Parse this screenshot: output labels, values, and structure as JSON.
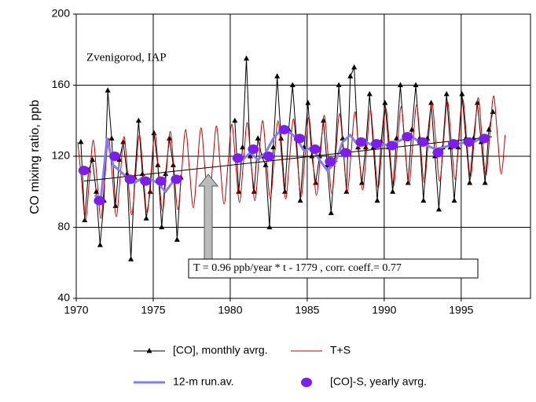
{
  "chart_data": {
    "type": "line",
    "annotation_location": "Zvenigorod, IAP",
    "ylabel": "CO mixing ratio, ppb",
    "annotation_trend": "T = 0.96 ppb/year * t  - 1779 , corr. coeff.= 0.77",
    "xlim": [
      1970,
      1999.5
    ],
    "ylim": [
      40,
      200
    ],
    "xticks": [
      1970,
      1975,
      1980,
      1985,
      1990,
      1995
    ],
    "yticks": [
      40,
      80,
      120,
      160,
      200
    ],
    "grid": true,
    "trend": {
      "color": "#000000",
      "x": [
        1970.5,
        1997
      ],
      "values": [
        106,
        131
      ]
    },
    "series": [
      {
        "name": "[CO], monthly avrg.",
        "color": "#000000",
        "marker": "triangle",
        "line": true,
        "width": 1,
        "x": [
          1970.3,
          1970.55,
          1970.8,
          1971.05,
          1971.3,
          1971.55,
          1971.8,
          1972.05,
          1972.3,
          1972.55,
          1972.8,
          1973.05,
          1973.3,
          1973.55,
          1973.8,
          1974.05,
          1974.3,
          1974.55,
          1974.8,
          1975.05,
          1975.3,
          1975.55,
          1975.8,
          1976.05,
          1976.3,
          1976.55,
          1976.8,
          1978.5,
          1980.3,
          1980.55,
          1980.8,
          1981.05,
          1981.3,
          1981.55,
          1981.8,
          1982.05,
          1982.3,
          1982.55,
          1982.8,
          1983.05,
          1983.3,
          1983.55,
          1983.8,
          1984.05,
          1984.3,
          1984.55,
          1984.8,
          1985.05,
          1985.3,
          1985.55,
          1985.8,
          1986.05,
          1986.3,
          1986.55,
          1986.8,
          1987.05,
          1987.3,
          1987.55,
          1987.8,
          1988.05,
          1988.3,
          1988.55,
          1988.8,
          1989.05,
          1989.3,
          1989.55,
          1989.8,
          1990.05,
          1990.3,
          1990.55,
          1990.8,
          1991.05,
          1991.3,
          1991.55,
          1991.8,
          1992.05,
          1992.3,
          1992.55,
          1992.8,
          1993.05,
          1993.3,
          1993.55,
          1993.8,
          1994.05,
          1994.3,
          1994.55,
          1994.8,
          1995.05,
          1995.3,
          1995.55,
          1995.8,
          1996.05,
          1996.3,
          1996.55,
          1996.8,
          1997.05
        ],
        "values": [
          128,
          84,
          112,
          118,
          100,
          70,
          95,
          157,
          130,
          92,
          118,
          128,
          110,
          62,
          108,
          140,
          110,
          85,
          100,
          133,
          115,
          80,
          110,
          130,
          115,
          73,
          108,
          null,
          140,
          100,
          125,
          175,
          120,
          100,
          130,
          120,
          115,
          80,
          125,
          165,
          130,
          100,
          135,
          160,
          130,
          95,
          125,
          150,
          120,
          105,
          120,
          140,
          115,
          88,
          118,
          160,
          130,
          100,
          165,
          170,
          125,
          105,
          125,
          155,
          125,
          95,
          128,
          150,
          125,
          100,
          130,
          160,
          130,
          105,
          135,
          160,
          130,
          95,
          130,
          150,
          120,
          90,
          125,
          155,
          125,
          95,
          125,
          155,
          130,
          105,
          130,
          150,
          128,
          105,
          135,
          145
        ]
      },
      {
        "name": "T+S",
        "color": "#c00000",
        "marker": null,
        "line": true,
        "width": 1,
        "smooth": true,
        "x": [
          1970.1,
          1970.35,
          1970.6,
          1970.85,
          1971.1,
          1971.35,
          1971.6,
          1971.85,
          1972.1,
          1972.35,
          1972.6,
          1972.85,
          1973.1,
          1973.35,
          1973.6,
          1973.85,
          1974.1,
          1974.35,
          1974.6,
          1974.85,
          1975.1,
          1975.35,
          1975.6,
          1975.85,
          1976.1,
          1976.35,
          1976.6,
          1976.85,
          1977.1,
          1977.35,
          1977.6,
          1977.85,
          1978.1,
          1978.35,
          1978.6,
          1978.85,
          1979.1,
          1979.35,
          1979.6,
          1979.85,
          1980.1,
          1980.35,
          1980.6,
          1980.85,
          1981.1,
          1981.35,
          1981.6,
          1981.85,
          1982.1,
          1982.35,
          1982.6,
          1982.85,
          1983.1,
          1983.35,
          1983.6,
          1983.85,
          1984.1,
          1984.35,
          1984.6,
          1984.85,
          1985.1,
          1985.35,
          1985.6,
          1985.85,
          1986.1,
          1986.35,
          1986.6,
          1986.85,
          1987.1,
          1987.35,
          1987.6,
          1987.85,
          1988.1,
          1988.35,
          1988.6,
          1988.85,
          1989.1,
          1989.35,
          1989.6,
          1989.85,
          1990.1,
          1990.35,
          1990.6,
          1990.85,
          1991.1,
          1991.35,
          1991.6,
          1991.85,
          1992.1,
          1992.35,
          1992.6,
          1992.85,
          1993.1,
          1993.35,
          1993.6,
          1993.85,
          1994.1,
          1994.35,
          1994.6,
          1994.85,
          1995.1,
          1995.35,
          1995.6,
          1995.85,
          1996.1,
          1996.35,
          1996.6,
          1996.85,
          1997.1,
          1997.35,
          1997.6,
          1997.85
        ],
        "values": [
          128,
          106,
          84,
          106,
          129,
          107,
          85,
          107,
          130,
          108,
          86,
          108,
          131,
          109,
          87,
          109,
          132,
          110,
          88,
          110,
          133,
          111,
          89,
          111,
          134,
          112,
          90,
          112,
          135,
          113,
          91,
          113,
          136,
          114,
          92,
          114,
          137,
          115,
          93,
          115,
          138,
          116,
          94,
          116,
          139,
          117,
          95,
          117,
          140,
          118,
          96,
          118,
          140,
          118,
          96,
          118,
          141,
          119,
          97,
          119,
          142,
          120,
          98,
          120,
          143,
          121,
          99,
          121,
          144,
          122,
          100,
          122,
          145,
          123,
          101,
          123,
          146,
          124,
          102,
          124,
          147,
          125,
          103,
          125,
          148,
          126,
          104,
          126,
          149,
          127,
          105,
          127,
          150,
          128,
          106,
          128,
          151,
          129,
          107,
          129,
          152,
          130,
          108,
          130,
          153,
          131,
          109,
          131,
          154,
          132,
          110,
          132
        ]
      },
      {
        "name": "12-m run.av.",
        "color": "#7f7ff0",
        "marker": null,
        "line": true,
        "width": 3,
        "x": [
          1971.2,
          1971.6,
          1972.0,
          1972.4,
          1972.8,
          1973.3,
          1973.8,
          1974.3,
          1974.8,
          1975.3,
          1975.8,
          1976.3,
          1978.5,
          1980.8,
          1981.3,
          1981.8,
          1982.3,
          1982.8,
          1983.3,
          1983.8,
          1984.3,
          1984.8,
          1985.3,
          1985.8,
          1986.3,
          1986.8,
          1987.3,
          1987.8,
          1988.3,
          1988.8,
          1989.3,
          1989.8,
          1990.3,
          1990.8,
          1991.3,
          1991.8,
          1992.3,
          1992.8,
          1993.3,
          1993.8,
          1994.3,
          1994.8,
          1995.3,
          1995.8,
          1996.3
        ],
        "values": [
          98,
          96,
          130,
          115,
          112,
          108,
          105,
          108,
          107,
          105,
          100,
          106,
          null,
          118,
          122,
          118,
          122,
          130,
          135,
          134,
          130,
          123,
          125,
          118,
          112,
          116,
          128,
          132,
          126,
          128,
          126,
          127,
          126,
          128,
          130,
          131,
          128,
          126,
          124,
          125,
          126,
          127,
          128,
          128,
          130
        ]
      },
      {
        "name": "[CO]-S, yearly avrg.",
        "color": "#7a20e8",
        "marker": "circle",
        "line": false,
        "width": 0,
        "x": [
          1970.5,
          1971.5,
          1972.5,
          1973.5,
          1974.5,
          1975.5,
          1976.5,
          1980.5,
          1981.5,
          1982.5,
          1983.5,
          1984.5,
          1985.5,
          1986.5,
          1987.5,
          1988.5,
          1989.5,
          1990.5,
          1991.5,
          1992.5,
          1993.5,
          1994.5,
          1995.5,
          1996.5
        ],
        "values": [
          112,
          95,
          120,
          107,
          106,
          106,
          107,
          119,
          124,
          120,
          135,
          130,
          124,
          117,
          122,
          128,
          127,
          126,
          131,
          128,
          122,
          127,
          128,
          130
        ]
      }
    ]
  }
}
